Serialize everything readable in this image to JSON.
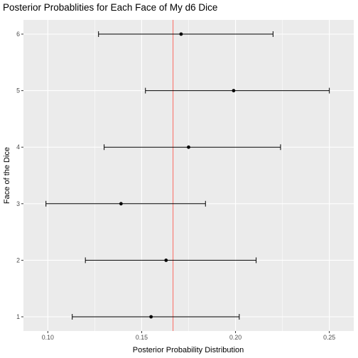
{
  "chart_data": {
    "type": "errorbar",
    "title": "Posterior Probablities for Each Face of My d6 Dice",
    "xlabel": "Posterior Probability Distribution",
    "ylabel": "Face of the Dice",
    "xlim": [
      0.087,
      0.263
    ],
    "x_ticks": [
      0.1,
      0.15,
      0.2,
      0.25
    ],
    "x_tick_labels": [
      "0.10",
      "0.15",
      "0.20",
      "0.25"
    ],
    "categories": [
      "1",
      "2",
      "3",
      "4",
      "5",
      "6"
    ],
    "points": [
      {
        "face": "1",
        "estimate": 0.155,
        "lower": 0.113,
        "upper": 0.202
      },
      {
        "face": "2",
        "estimate": 0.163,
        "lower": 0.12,
        "upper": 0.211
      },
      {
        "face": "3",
        "estimate": 0.139,
        "lower": 0.099,
        "upper": 0.184
      },
      {
        "face": "4",
        "estimate": 0.175,
        "lower": 0.13,
        "upper": 0.224
      },
      {
        "face": "5",
        "estimate": 0.199,
        "lower": 0.152,
        "upper": 0.25
      },
      {
        "face": "6",
        "estimate": 0.171,
        "lower": 0.127,
        "upper": 0.22
      }
    ],
    "reference_line": {
      "x": 0.1667,
      "color": "#f8766d"
    },
    "panel_background": "#ebebeb",
    "grid_color": "#ffffff",
    "grid": true,
    "legend": "none"
  }
}
